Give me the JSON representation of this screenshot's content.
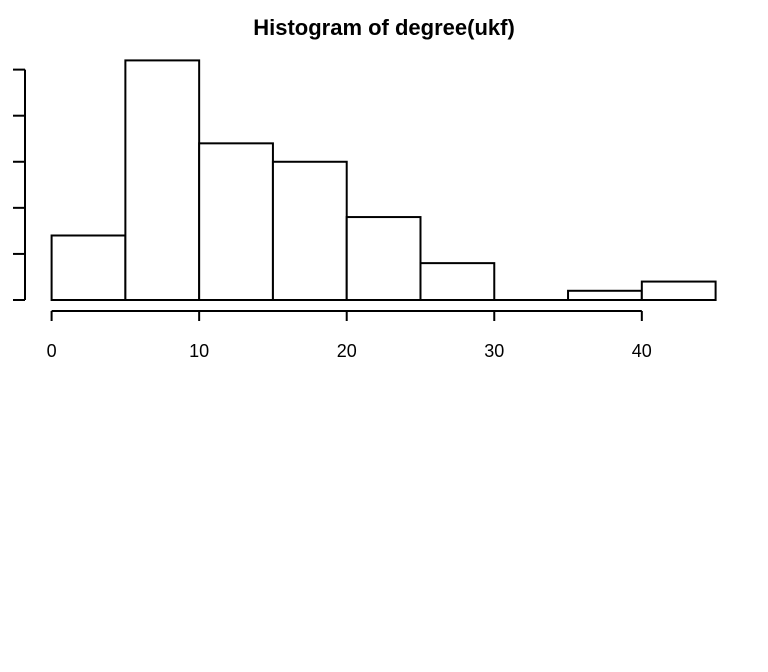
{
  "chart_data": {
    "type": "bar",
    "title": "Histogram of degree(ukf)",
    "xlabel": "",
    "ylabel": "",
    "bins": [
      {
        "start": 0,
        "end": 5,
        "count": 14
      },
      {
        "start": 5,
        "end": 10,
        "count": 52
      },
      {
        "start": 10,
        "end": 15,
        "count": 34
      },
      {
        "start": 15,
        "end": 20,
        "count": 30
      },
      {
        "start": 20,
        "end": 25,
        "count": 18
      },
      {
        "start": 25,
        "end": 30,
        "count": 8
      },
      {
        "start": 30,
        "end": 35,
        "count": 0
      },
      {
        "start": 35,
        "end": 40,
        "count": 2
      },
      {
        "start": 40,
        "end": 45,
        "count": 4
      }
    ],
    "xlim": [
      0,
      45
    ],
    "ylim": [
      0,
      52
    ],
    "x_ticks": [
      0,
      10,
      20,
      30,
      40
    ],
    "y_ticks": [
      0,
      10,
      20,
      30,
      40,
      50
    ],
    "y_tick_labels_visible": false,
    "grid": false,
    "colors": {
      "bar_fill": "#ffffff",
      "bar_stroke": "#000000"
    }
  }
}
